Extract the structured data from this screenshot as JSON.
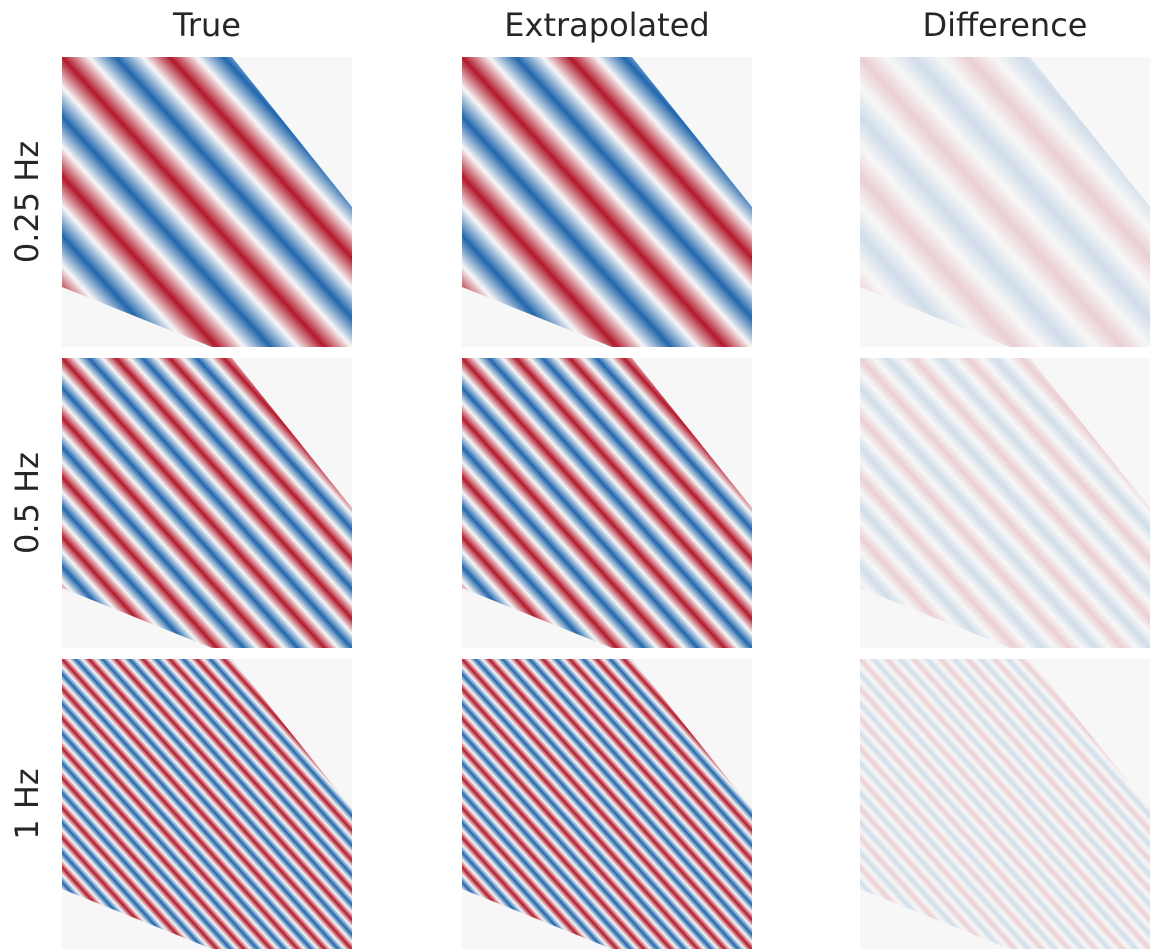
{
  "columns": [
    "True",
    "Extrapolated",
    "Difference"
  ],
  "rows": [
    "0.25 Hz",
    "0.5 Hz",
    "1 Hz"
  ]
}
